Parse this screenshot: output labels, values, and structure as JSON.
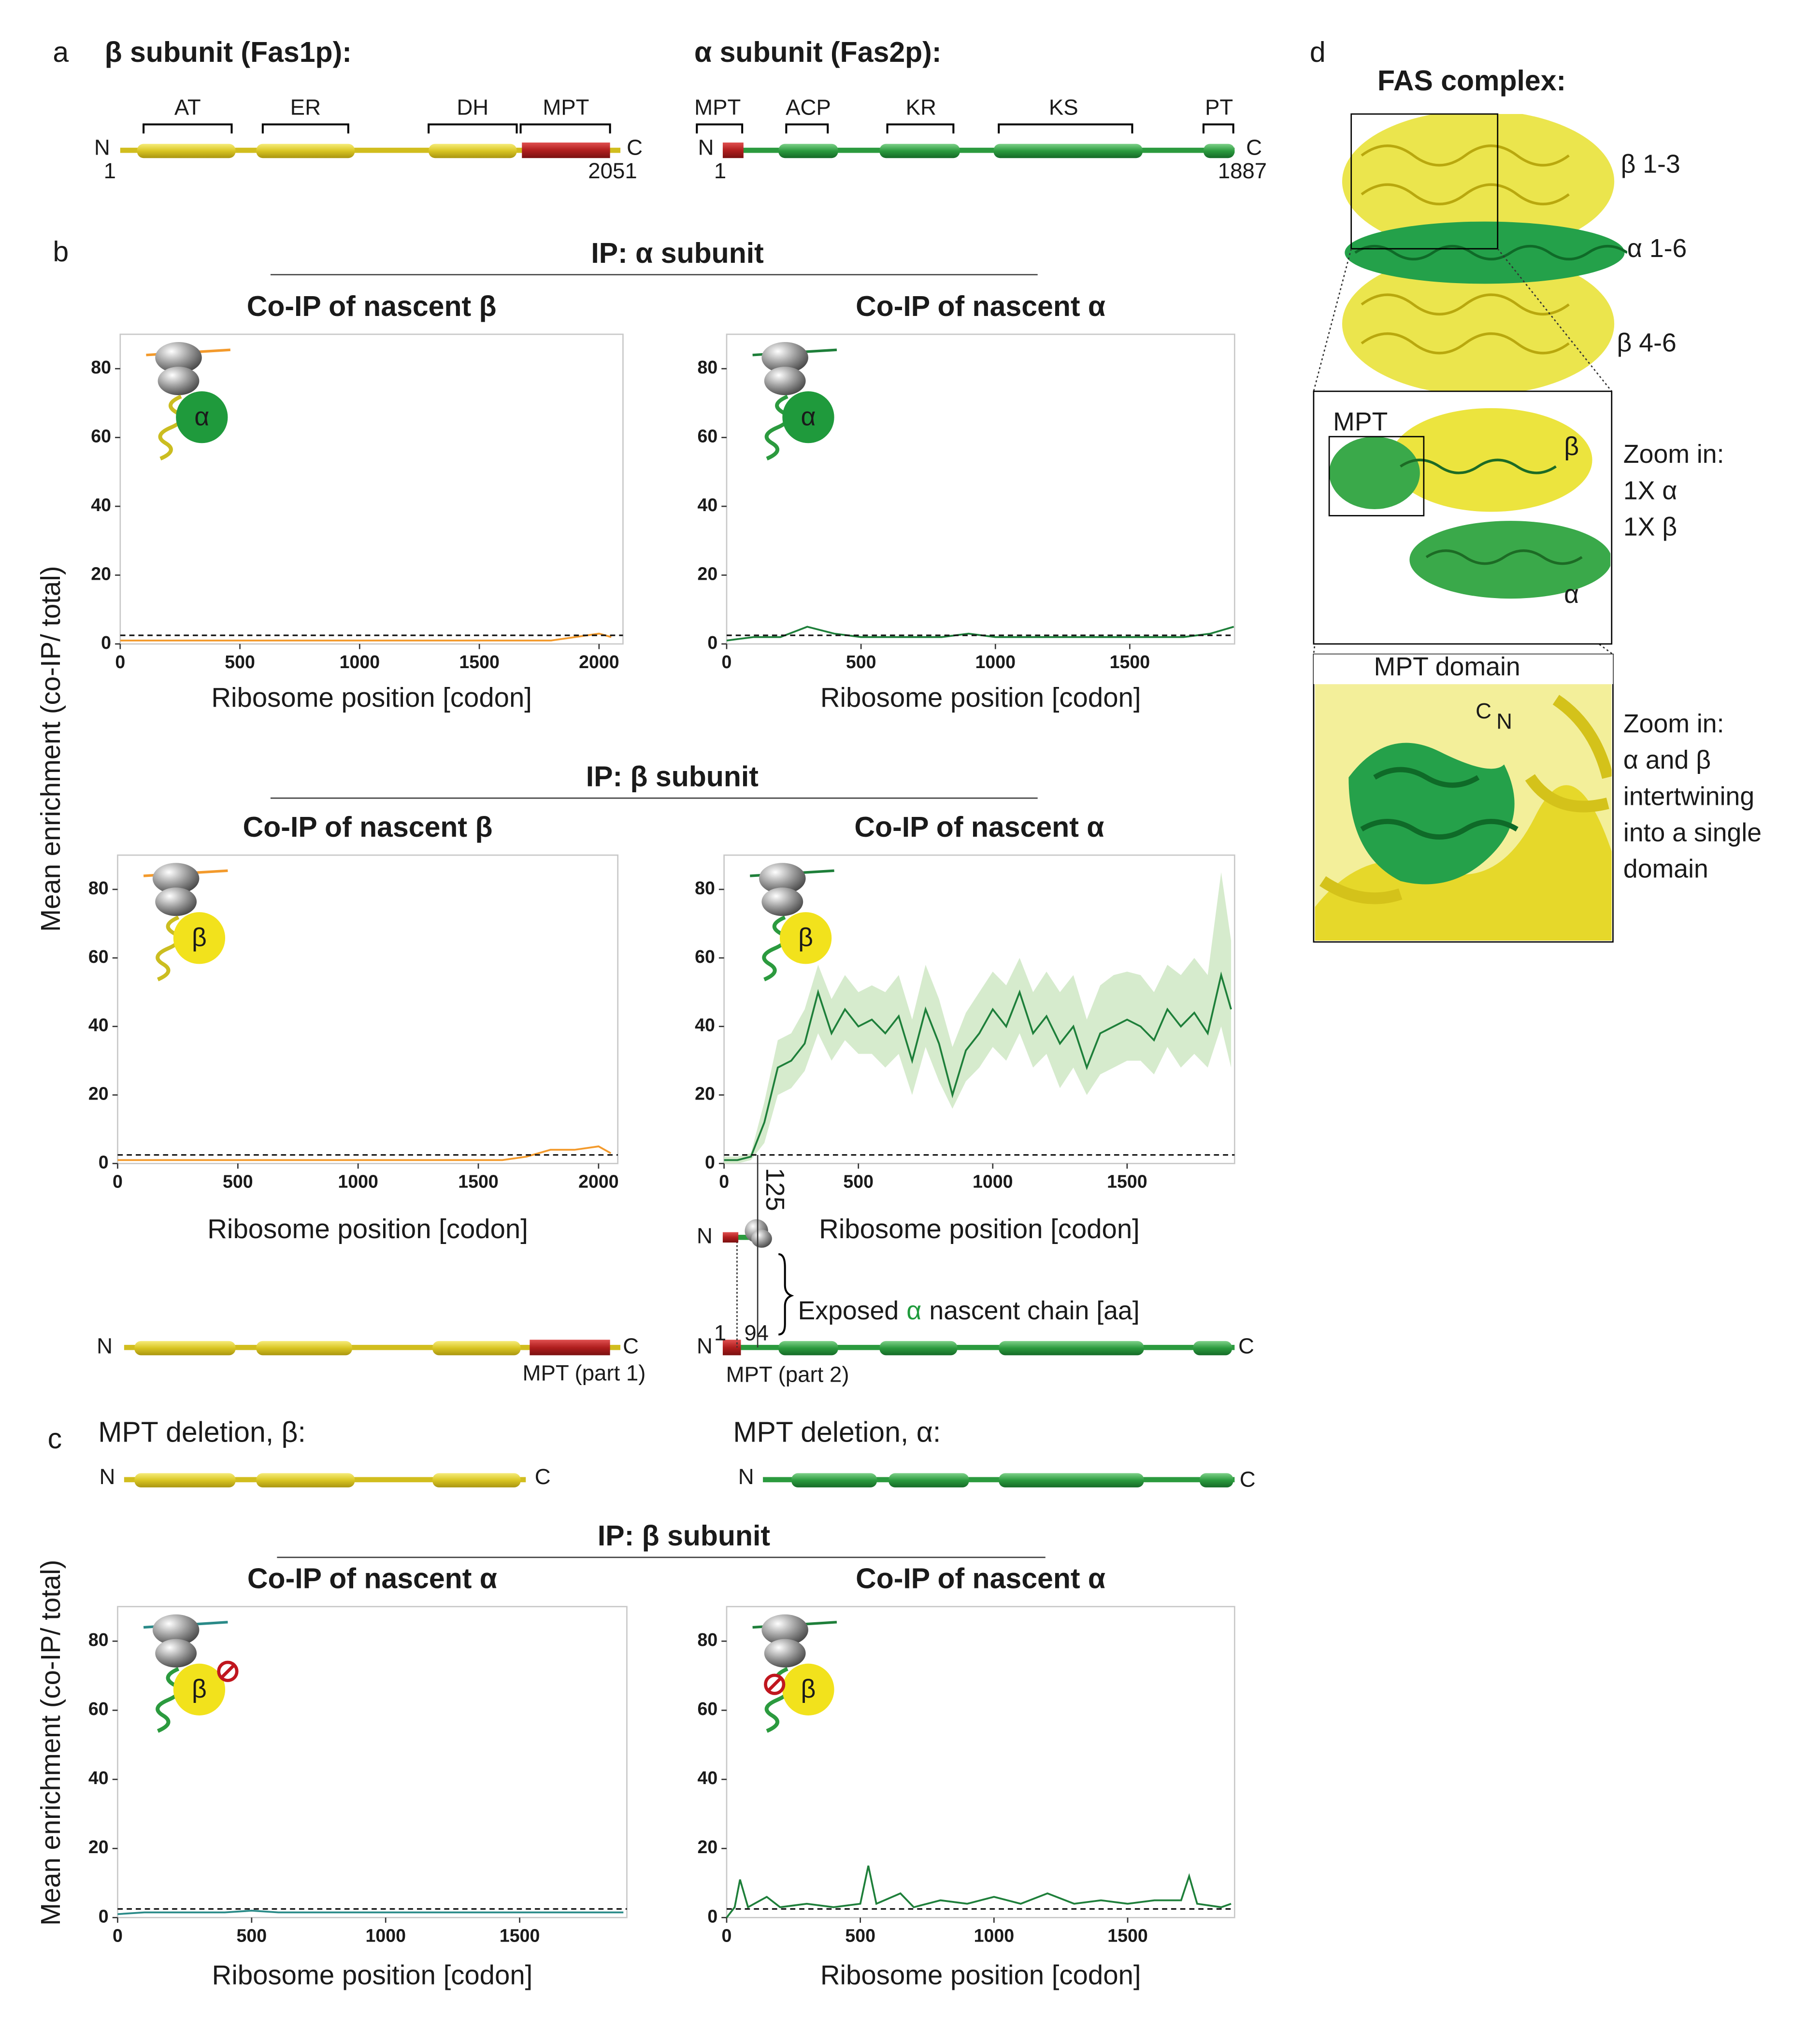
{
  "panel_labels": [
    "a",
    "b",
    "c",
    "d"
  ],
  "panel_a": {
    "beta_title": "β subunit (Fas1p):",
    "alpha_title": "α subunit (Fas2p):",
    "beta_domains": [
      "AT",
      "ER",
      "DH",
      "MPT"
    ],
    "alpha_domains": [
      "MPT",
      "ACP",
      "KR",
      "KS",
      "PT"
    ],
    "n": "N",
    "c": "C",
    "beta_start": 1,
    "beta_end": 2051,
    "alpha_start": 1,
    "alpha_end": 1887
  },
  "sections": [
    "IP: α subunit",
    "IP: β subunit",
    "IP: β subunit"
  ],
  "panel_b_maps": {
    "beta_part": "MPT (part 1)",
    "alpha_part": "MPT (part 2)",
    "start": 1,
    "exposed": 94,
    "exposed_label": [
      "Exposed",
      "α",
      "nascent chain [aa]"
    ]
  },
  "panel_c": {
    "beta_title": "MPT deletion, β:",
    "alpha_title": "MPT deletion, α:"
  },
  "panel_d": {
    "title": "FAS complex:",
    "labels": [
      "β 1-3",
      "α 1-6",
      "β 4-6"
    ],
    "zoom1": {
      "mpt": "MPT",
      "beta": "β",
      "alpha": "α",
      "text": [
        "Zoom in:",
        "1X α",
        "1X β"
      ]
    },
    "zoom2": {
      "title": "MPT domain",
      "c": "C",
      "n": "N",
      "text": [
        "Zoom in:",
        "α and β",
        "intertwining",
        "into a single",
        "domain"
      ]
    }
  },
  "chart_data": [
    {
      "type": "line",
      "title": "Co-IP of nascent β",
      "xlabel": "Ribosome position [codon]",
      "ylabel": "Mean enrichment (co-IP/ total)",
      "inset": "α",
      "inset_color": "#1f9a3c",
      "xlim": [
        0,
        2100
      ],
      "ylim": [
        0,
        90
      ],
      "xticks": [
        0,
        500,
        1000,
        1500,
        2000
      ],
      "yticks": [
        0,
        20,
        40,
        60,
        80
      ],
      "threshold": 2.5,
      "x": [
        0,
        100,
        200,
        300,
        400,
        500,
        600,
        700,
        800,
        900,
        1000,
        1100,
        1200,
        1300,
        1400,
        1500,
        1600,
        1700,
        1800,
        1900,
        2000,
        2051
      ],
      "series": [
        {
          "color": "#f39a2c",
          "values": [
            1,
            1,
            1,
            1,
            1,
            1,
            1,
            1,
            1,
            1,
            1,
            1,
            1,
            1,
            1,
            1,
            1,
            1,
            1,
            2,
            3,
            2
          ]
        }
      ]
    },
    {
      "type": "line",
      "title": "Co-IP of nascent α",
      "xlabel": "Ribosome position [codon]",
      "inset": "α",
      "inset_color": "#1f9a3c",
      "xlim": [
        0,
        1890
      ],
      "ylim": [
        0,
        90
      ],
      "xticks": [
        0,
        500,
        1000,
        1500
      ],
      "yticks": [
        0,
        20,
        40,
        60,
        80
      ],
      "threshold": 2.5,
      "x": [
        0,
        100,
        200,
        300,
        400,
        500,
        600,
        700,
        800,
        900,
        1000,
        1100,
        1200,
        1300,
        1400,
        1500,
        1600,
        1700,
        1800,
        1887
      ],
      "series": [
        {
          "color": "#1e7f3a",
          "values": [
            1,
            2,
            2,
            5,
            3,
            2,
            2,
            2,
            2,
            3,
            2,
            2,
            2,
            2,
            2,
            2,
            2,
            2,
            3,
            5
          ]
        }
      ]
    },
    {
      "type": "line",
      "title": "Co-IP of nascent β",
      "xlabel": "Ribosome position [codon]",
      "inset": "β",
      "inset_color": "#f2e21c",
      "xlim": [
        0,
        2080
      ],
      "ylim": [
        0,
        90
      ],
      "xticks": [
        0,
        500,
        1000,
        1500,
        2000
      ],
      "yticks": [
        0,
        20,
        40,
        60,
        80
      ],
      "threshold": 2.5,
      "x": [
        0,
        100,
        200,
        300,
        400,
        500,
        600,
        700,
        800,
        900,
        1000,
        1100,
        1200,
        1300,
        1400,
        1500,
        1600,
        1700,
        1800,
        1900,
        2000,
        2051
      ],
      "series": [
        {
          "color": "#f39a2c",
          "values": [
            1,
            1,
            1,
            1,
            1,
            1,
            1,
            1,
            1,
            1,
            1,
            1,
            1,
            1,
            1,
            1,
            1,
            2,
            4,
            4,
            5,
            3
          ]
        }
      ]
    },
    {
      "type": "line",
      "title": "Co-IP of nascent α",
      "xlabel": "Ribosome position [codon]",
      "inset": "β",
      "inset_color": "#f2e21c",
      "xlim": [
        0,
        1900
      ],
      "ylim": [
        0,
        90
      ],
      "xticks": [
        0,
        500,
        1000,
        1500
      ],
      "yticks": [
        0,
        20,
        40,
        60,
        80
      ],
      "threshold": 2.5,
      "marker": 125,
      "x": [
        0,
        50,
        100,
        150,
        200,
        250,
        300,
        350,
        400,
        450,
        500,
        550,
        600,
        650,
        700,
        750,
        800,
        850,
        900,
        950,
        1000,
        1050,
        1100,
        1150,
        1200,
        1250,
        1300,
        1350,
        1400,
        1450,
        1500,
        1550,
        1600,
        1650,
        1700,
        1750,
        1800,
        1850,
        1887
      ],
      "series": [
        {
          "color": "#1e7f3a",
          "values": [
            1,
            1,
            2,
            12,
            28,
            30,
            35,
            50,
            38,
            45,
            40,
            42,
            38,
            43,
            30,
            45,
            35,
            20,
            33,
            38,
            45,
            40,
            50,
            38,
            43,
            35,
            40,
            28,
            38,
            40,
            42,
            40,
            36,
            45,
            40,
            44,
            38,
            55,
            45
          ]
        }
      ],
      "band": {
        "color": "#cfe7c4",
        "lower": [
          0,
          0,
          1,
          6,
          20,
          22,
          27,
          38,
          30,
          36,
          32,
          32,
          28,
          32,
          20,
          34,
          24,
          16,
          24,
          28,
          34,
          30,
          38,
          28,
          32,
          22,
          28,
          20,
          26,
          28,
          30,
          30,
          26,
          34,
          28,
          32,
          28,
          40,
          28
        ],
        "upper": [
          2,
          2,
          3,
          18,
          36,
          38,
          45,
          58,
          48,
          55,
          50,
          52,
          50,
          55,
          42,
          58,
          48,
          34,
          44,
          50,
          56,
          52,
          60,
          50,
          56,
          50,
          55,
          42,
          52,
          55,
          56,
          55,
          50,
          58,
          55,
          60,
          55,
          85,
          65
        ]
      }
    },
    {
      "type": "line",
      "title": "Co-IP of nascent α",
      "xlabel": "Ribosome position [codon]",
      "ylabel": "Mean enrichment (co-IP/ total)",
      "inset": "β",
      "inset_color": "#f2e21c",
      "xlim": [
        0,
        1900
      ],
      "ylim": [
        0,
        90
      ],
      "xticks": [
        0,
        500,
        1000,
        1500
      ],
      "yticks": [
        0,
        20,
        40,
        60,
        80
      ],
      "threshold": 2.5,
      "x": [
        0,
        100,
        200,
        300,
        400,
        500,
        600,
        700,
        800,
        900,
        1000,
        1100,
        1200,
        1300,
        1400,
        1500,
        1600,
        1700,
        1800,
        1887
      ],
      "series": [
        {
          "color": "#2a8a88",
          "values": [
            1,
            1.5,
            1.5,
            1.5,
            1.5,
            2,
            1.5,
            1.5,
            1.5,
            1.5,
            1.5,
            1.5,
            1.5,
            1.5,
            1.5,
            1.5,
            1.5,
            1.5,
            1.5,
            1.5
          ]
        }
      ]
    },
    {
      "type": "line",
      "title": "Co-IP of nascent α",
      "xlabel": "Ribosome position [codon]",
      "inset": "β",
      "inset_color": "#f2e21c",
      "xlim": [
        0,
        1900
      ],
      "ylim": [
        0,
        90
      ],
      "xticks": [
        0,
        500,
        1000,
        1500
      ],
      "yticks": [
        0,
        20,
        40,
        60,
        80
      ],
      "threshold": 2.5,
      "x": [
        0,
        30,
        50,
        80,
        150,
        200,
        300,
        400,
        500,
        530,
        560,
        650,
        700,
        800,
        900,
        1000,
        1100,
        1200,
        1300,
        1400,
        1500,
        1600,
        1700,
        1730,
        1760,
        1850,
        1887
      ],
      "series": [
        {
          "color": "#1e7f3a",
          "values": [
            0,
            3,
            11,
            3,
            6,
            3,
            4,
            3,
            4,
            15,
            4,
            7,
            3,
            5,
            4,
            6,
            4,
            7,
            4,
            5,
            4,
            5,
            5,
            12,
            4,
            3,
            4
          ]
        }
      ]
    }
  ]
}
